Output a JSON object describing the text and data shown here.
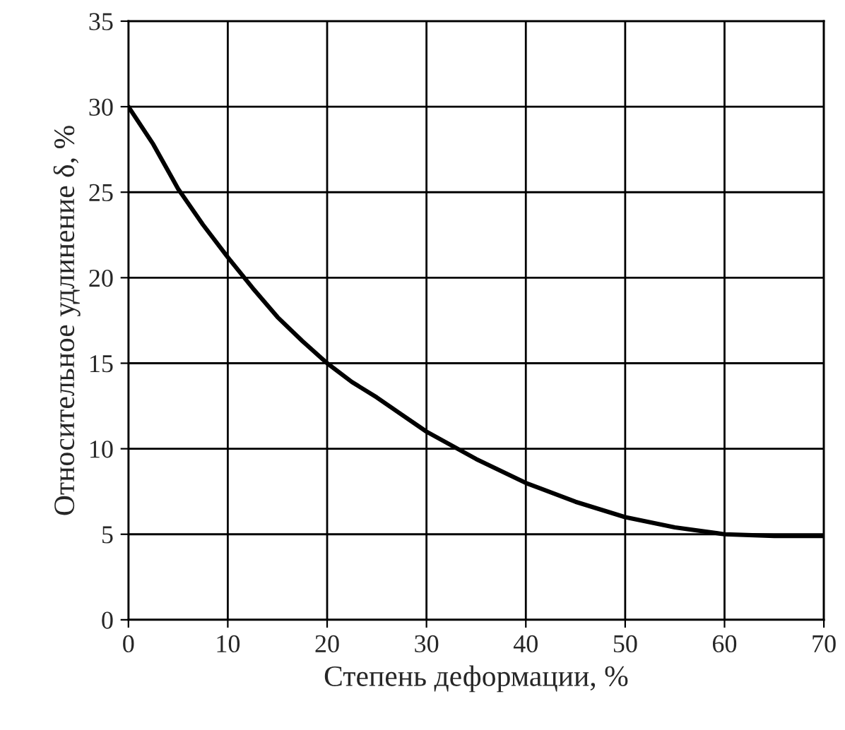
{
  "chart_data": {
    "type": "line",
    "xlabel": "Степень деформации, %",
    "ylabel": "Относительное удлинение δ, %",
    "x": [
      0,
      2.5,
      5,
      7.5,
      10,
      12.5,
      15,
      17.5,
      20,
      22.5,
      25,
      27.5,
      30,
      35,
      40,
      45,
      50,
      55,
      60,
      65,
      70
    ],
    "series": [
      {
        "color": "#000000",
        "values": [
          30,
          27.8,
          25.2,
          23.1,
          21.2,
          19.4,
          17.7,
          16.3,
          15,
          13.9,
          13,
          12,
          11,
          9.4,
          8,
          6.9,
          6,
          5.4,
          5,
          4.9,
          4.9
        ]
      }
    ],
    "xlim": [
      0,
      70
    ],
    "xticks": [
      0,
      10,
      20,
      30,
      40,
      50,
      60,
      70
    ],
    "ylim": [
      0,
      35
    ],
    "yticks": [
      0,
      5,
      10,
      15,
      20,
      25,
      30,
      35
    ],
    "grid": true,
    "marker": "none",
    "line_style": "solid"
  }
}
